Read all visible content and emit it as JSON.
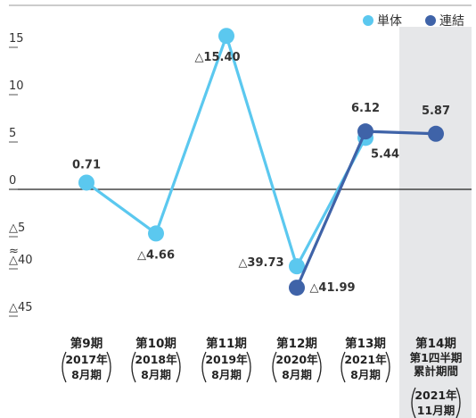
{
  "chart_data": {
    "type": "line",
    "legend": {
      "placement": "top-right"
    },
    "series": [
      {
        "name": "単体",
        "color": "#5bc8ef",
        "values": [
          0.71,
          -4.66,
          -15.4,
          -39.73,
          5.44,
          null
        ]
      },
      {
        "name": "連結",
        "color": "#3f63a8",
        "values": [
          null,
          null,
          null,
          -41.99,
          6.12,
          5.87
        ]
      }
    ],
    "categories": [
      {
        "label": "第9期",
        "sub": [
          "2017年",
          "8月期"
        ]
      },
      {
        "label": "第10期",
        "sub": [
          "2018年",
          "8月期"
        ]
      },
      {
        "label": "第11期",
        "sub": [
          "2019年",
          "8月期"
        ]
      },
      {
        "label": "第12期",
        "sub": [
          "2020年",
          "8月期"
        ]
      },
      {
        "label": "第13期",
        "sub": [
          "2021年",
          "8月期"
        ]
      },
      {
        "label": "第14期",
        "sub_pre": [
          "第1四半期",
          "累計期間"
        ],
        "sub": [
          "2021年",
          "11月期"
        ],
        "highlight": true
      }
    ],
    "y_ticks": [
      {
        "value": 15,
        "label": "15"
      },
      {
        "value": 10,
        "label": "10"
      },
      {
        "value": 5,
        "label": "5"
      },
      {
        "value": 0,
        "label": "0"
      },
      {
        "value": -5,
        "label": "△5"
      },
      {
        "value": -40,
        "label": "△40"
      },
      {
        "value": -45,
        "label": "△45"
      }
    ],
    "axis_break": {
      "between": [
        -5,
        -40
      ],
      "symbol": "≈"
    },
    "data_labels": {
      "single": [
        "0.71",
        "△4.66",
        "△15.40",
        "△39.73",
        "5.44",
        ""
      ],
      "consolidated": [
        "",
        "",
        "",
        "△41.99",
        "6.12",
        "5.87"
      ]
    },
    "ylim": [
      -45,
      15
    ]
  }
}
